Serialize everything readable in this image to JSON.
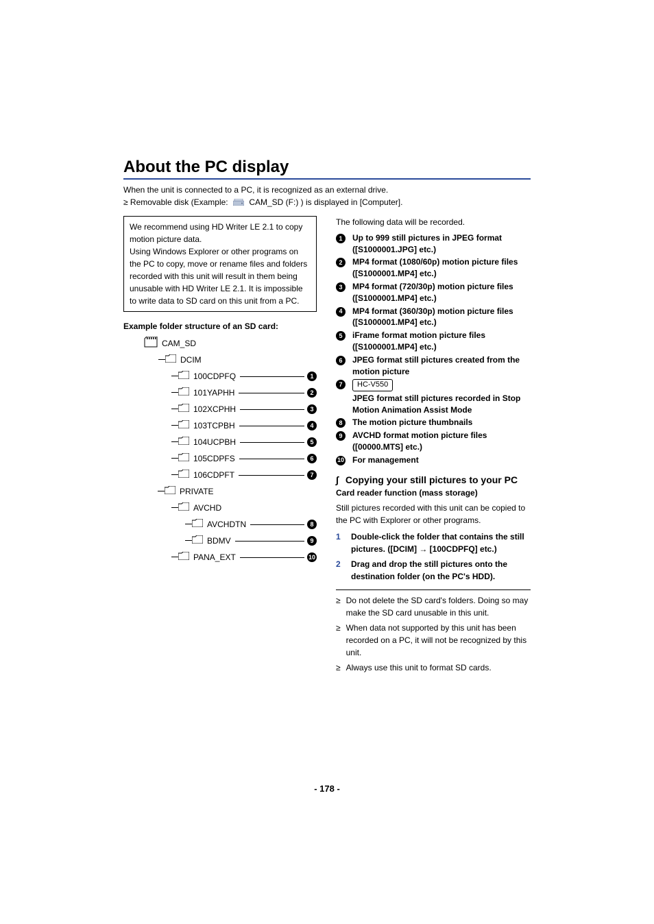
{
  "title": "About the PC display",
  "intro_line1": "When the unit is connected to a PC, it is recognized as an external drive.",
  "intro_bullet_prefix": "≥ Removable disk (Example: ",
  "drive_label": "CAM_SD (F:)",
  "intro_bullet_suffix": " ) is displayed in [Computer].",
  "note_box": "We recommend using HD Writer LE 2.1 to copy motion picture data.\nUsing Windows Explorer or other programs on the PC to copy, move or rename files and folders recorded with this unit will result in them being unusable with HD Writer LE 2.1. It is impossible to write data to SD card on this unit from a PC.",
  "example_heading": "Example folder structure of an SD card:",
  "tree": {
    "root": "CAM_SD",
    "dcim": "DCIM",
    "private": "PRIVATE",
    "avchd": "AVCHD",
    "leaves": [
      {
        "label": "100CDPFQ",
        "num": "1",
        "indent": 3
      },
      {
        "label": "101YAPHH",
        "num": "2",
        "indent": 3
      },
      {
        "label": "102XCPHH",
        "num": "3",
        "indent": 3
      },
      {
        "label": "103TCPBH",
        "num": "4",
        "indent": 3
      },
      {
        "label": "104UCPBH",
        "num": "5",
        "indent": 3
      },
      {
        "label": "105CDPFS",
        "num": "6",
        "indent": 3
      },
      {
        "label": "106CDPFT",
        "num": "7",
        "indent": 3
      }
    ],
    "avchd_leaves": [
      {
        "label": "AVCHDTN",
        "num": "8",
        "indent": 4
      },
      {
        "label": "BDMV",
        "num": "9",
        "indent": 4
      }
    ],
    "pana": {
      "label": "PANA_EXT",
      "num": "10",
      "indent": 3
    }
  },
  "right_intro": "The following data will be recorded.",
  "desc": [
    {
      "num": "1",
      "text": "Up to 999 still pictures in JPEG format ([S1000001.JPG] etc.)"
    },
    {
      "num": "2",
      "text": "MP4 format (1080/60p) motion picture files ([S1000001.MP4] etc.)"
    },
    {
      "num": "3",
      "text": "MP4 format (720/30p) motion picture files ([S1000001.MP4] etc.)"
    },
    {
      "num": "4",
      "text": "MP4 format (360/30p) motion picture files ([S1000001.MP4] etc.)"
    },
    {
      "num": "5",
      "text": "iFrame format motion picture files ([S1000001.MP4] etc.)"
    },
    {
      "num": "6",
      "text": "JPEG format still pictures created from the motion picture"
    },
    {
      "num": "7",
      "model": "HC-V550",
      "text": "JPEG format still pictures recorded in Stop Motion Animation Assist Mode"
    },
    {
      "num": "8",
      "text": "The motion picture thumbnails"
    },
    {
      "num": "9",
      "text": "AVCHD format motion picture files ([00000.MTS] etc.)"
    },
    {
      "num": "10",
      "text": "For management"
    }
  ],
  "copy_heading": "Copying your still pictures to your PC",
  "card_reader_heading": "Card reader function (mass storage)",
  "card_reader_text": "Still pictures recorded with this unit can be copied to the PC with Explorer or other programs.",
  "steps": [
    {
      "num": "1",
      "text": "Double-click the folder that contains the still pictures. ([DCIM] → [100CDPFQ] etc.)"
    },
    {
      "num": "2",
      "text": "Drag and drop the still pictures onto the destination folder (on the PC's HDD)."
    }
  ],
  "warnings": [
    "Do not delete the SD card's folders. Doing so may make the SD card unusable in this unit.",
    "When data not supported by this unit has been recorded on a PC, it will not be recognized by this unit.",
    "Always use this unit to format SD cards."
  ],
  "page_number": "- 178 -",
  "colors": {
    "rule": "#2a4a9a",
    "step_num": "#2a4a9a"
  }
}
